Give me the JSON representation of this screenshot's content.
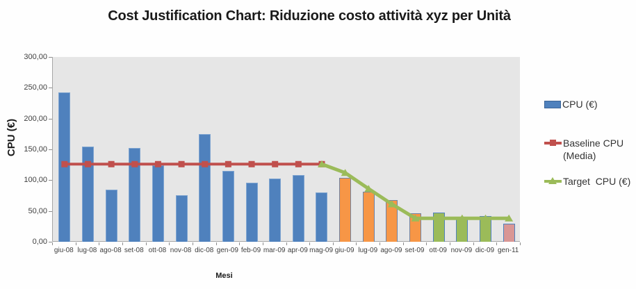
{
  "chart_data": {
    "type": "bar",
    "title": "Cost Justification Chart: Riduzione costo attività xyz per Unità",
    "xlabel": "Mesi",
    "ylabel": "CPU (€)",
    "ylim": [
      0,
      300
    ],
    "grid": false,
    "plot_background": "#E6E6E6",
    "legend_position": "right",
    "y_ticks": [
      {
        "value": 300,
        "label": "300,00"
      },
      {
        "value": 250,
        "label": "250,00"
      },
      {
        "value": 200,
        "label": "200,00"
      },
      {
        "value": 150,
        "label": "150,00"
      },
      {
        "value": 100,
        "label": "100,00"
      },
      {
        "value": 50,
        "label": "50,00"
      },
      {
        "value": 0,
        "label": "0,00"
      }
    ],
    "categories": [
      "giu-08",
      "lug-08",
      "ago-08",
      "set-08",
      "ott-08",
      "nov-08",
      "dic-08",
      "gen-09",
      "feb-09",
      "mar-09",
      "apr-09",
      "mag-09",
      "giu-09",
      "lug-09",
      "ago-09",
      "set-09",
      "ott-09",
      "nov-09",
      "dic-09",
      "gen-11"
    ],
    "series": [
      {
        "name": "CPU (€)",
        "type": "bar",
        "values": [
          243,
          155,
          85,
          152,
          124,
          76,
          175,
          115,
          96,
          103,
          108,
          80,
          104,
          81,
          68,
          46,
          47,
          40,
          42,
          29
        ],
        "groups": [
          {
            "from": 0,
            "to": 11,
            "fill": "#4F81BD",
            "stroke": "#7FA5D1"
          },
          {
            "from": 12,
            "to": 15,
            "fill": "#F79646",
            "stroke": "#6F82A3"
          },
          {
            "from": 16,
            "to": 18,
            "fill": "#9BBB59",
            "stroke": "#4F81BD"
          },
          {
            "from": 19,
            "to": 19,
            "fill": "#D99694",
            "stroke": "#4F81BD"
          }
        ]
      },
      {
        "name": "Baseline CPU (Media)",
        "type": "line",
        "marker": "square",
        "color": "#C0504D",
        "start_index": 0,
        "values": [
          126,
          126,
          126,
          126,
          126,
          126,
          126,
          126,
          126,
          126,
          126,
          126
        ]
      },
      {
        "name": "Target  CPU (€)",
        "type": "line",
        "marker": "triangle",
        "color": "#9BBB59",
        "start_index": 11,
        "values": [
          126,
          112,
          86,
          61,
          38,
          38,
          38,
          38,
          38
        ]
      }
    ],
    "legend": [
      {
        "label": "CPU (€)",
        "color": "#4F81BD"
      },
      {
        "label": "Baseline CPU",
        "label2": "(Media)",
        "color": "#C0504D"
      },
      {
        "label": "Target  CPU (€)",
        "color": "#9BBB59"
      }
    ]
  }
}
